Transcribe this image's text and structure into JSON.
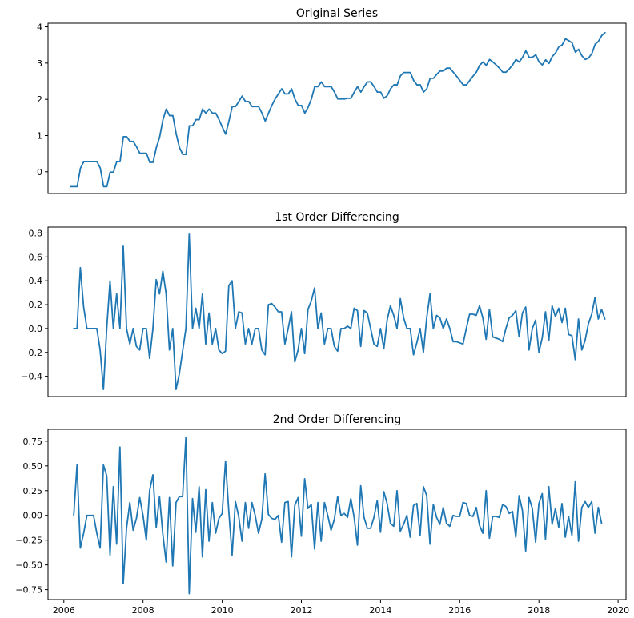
{
  "colors": {
    "line": "#1f77b4",
    "axes": "#000000",
    "background": "#ffffff"
  },
  "chart_data": [
    {
      "type": "line",
      "title": "Original Series",
      "x_range": [
        2005.6,
        2020.2
      ],
      "ylim": [
        -0.6,
        4.1
      ],
      "y_ticks": [
        0,
        1,
        2,
        3,
        4
      ],
      "y_tick_labels": [
        "0",
        "1",
        "2",
        "3",
        "4"
      ],
      "x_ticks": [],
      "grid": false,
      "series": [
        {
          "x_start": 2006.17,
          "x_step": 0.08333,
          "values": [
            -0.41,
            -0.41,
            -0.41,
            0.1,
            0.28,
            0.28,
            0.28,
            0.28,
            0.28,
            0.1,
            -0.41,
            -0.41,
            -0.01,
            -0.01,
            0.28,
            0.28,
            0.97,
            0.97,
            0.84,
            0.84,
            0.69,
            0.51,
            0.51,
            0.51,
            0.26,
            0.26,
            0.67,
            0.96,
            1.44,
            1.73,
            1.55,
            1.55,
            1.05,
            0.67,
            0.48,
            0.48,
            1.27,
            1.27,
            1.44,
            1.44,
            1.73,
            1.62,
            1.73,
            1.62,
            1.62,
            1.44,
            1.23,
            1.04,
            1.4,
            1.8,
            1.8,
            1.94,
            2.09,
            1.94,
            1.94,
            1.8,
            1.8,
            1.8,
            1.62,
            1.4,
            1.62,
            1.83,
            2.01,
            2.15,
            2.29,
            2.15,
            2.15,
            2.29,
            2.01,
            1.83,
            1.83,
            1.62,
            1.78,
            2.01,
            2.35,
            2.35,
            2.48,
            2.35,
            2.35,
            2.35,
            2.2,
            2.01,
            2.01,
            2.01,
            2.03,
            2.03,
            2.2,
            2.35,
            2.2,
            2.35,
            2.48,
            2.48,
            2.35,
            2.2,
            2.2,
            2.03,
            2.1,
            2.29,
            2.4,
            2.4,
            2.65,
            2.74,
            2.74,
            2.74,
            2.52,
            2.4,
            2.4,
            2.2,
            2.29,
            2.58,
            2.58,
            2.69,
            2.78,
            2.78,
            2.86,
            2.86,
            2.75,
            2.64,
            2.52,
            2.4,
            2.4,
            2.52,
            2.64,
            2.75,
            2.94,
            3.03,
            2.94,
            3.1,
            3.03,
            2.95,
            2.86,
            2.75,
            2.75,
            2.84,
            2.95,
            3.1,
            3.03,
            3.16,
            3.34,
            3.16,
            3.16,
            3.23,
            3.03,
            2.95,
            3.09,
            2.99,
            3.18,
            3.28,
            3.45,
            3.5,
            3.67,
            3.62,
            3.56,
            3.3,
            3.38,
            3.2,
            3.1,
            3.14,
            3.26,
            3.52,
            3.6,
            3.76,
            3.84
          ]
        }
      ]
    },
    {
      "type": "line",
      "title": "1st Order Differencing",
      "x_range": [
        2005.6,
        2020.2
      ],
      "ylim": [
        -0.57,
        0.85
      ],
      "y_ticks": [
        -0.4,
        -0.2,
        0.0,
        0.2,
        0.4,
        0.6,
        0.8
      ],
      "y_tick_labels": [
        "−0.4",
        "−0.2",
        "0.0",
        "0.2",
        "0.4",
        "0.6",
        "0.8"
      ],
      "x_ticks": [],
      "grid": false,
      "series": [
        {
          "x_start": 2006.25,
          "x_step": 0.08333,
          "values": [
            0.0,
            0.0,
            0.51,
            0.18,
            0.0,
            0.0,
            0.0,
            0.0,
            -0.18,
            -0.51,
            0.0,
            0.4,
            0.0,
            0.29,
            0.0,
            0.69,
            0.0,
            -0.13,
            0.0,
            -0.15,
            -0.18,
            0.0,
            0.0,
            -0.25,
            0.0,
            0.41,
            0.29,
            0.48,
            0.29,
            -0.18,
            0.0,
            -0.51,
            -0.38,
            -0.19,
            0.0,
            0.79,
            0.0,
            0.17,
            0.0,
            0.29,
            -0.13,
            0.13,
            -0.13,
            0.0,
            -0.18,
            -0.21,
            -0.19,
            0.36,
            0.4,
            0.0,
            0.14,
            0.13,
            -0.13,
            0.0,
            -0.13,
            0.0,
            0.0,
            -0.18,
            -0.22,
            0.2,
            0.21,
            0.18,
            0.14,
            0.14,
            -0.13,
            0.0,
            0.14,
            -0.28,
            -0.18,
            0.0,
            -0.21,
            0.16,
            0.23,
            0.34,
            0.0,
            0.13,
            -0.13,
            0.0,
            0.0,
            -0.15,
            -0.19,
            0.0,
            0.0,
            0.02,
            0.0,
            0.17,
            0.15,
            -0.15,
            0.15,
            0.13,
            0.0,
            -0.13,
            -0.15,
            0.0,
            -0.17,
            0.07,
            0.19,
            0.11,
            0.0,
            0.25,
            0.09,
            0.0,
            0.0,
            -0.22,
            -0.12,
            0.0,
            -0.2,
            0.09,
            0.29,
            0.0,
            0.11,
            0.09,
            0.0,
            0.08,
            0.0,
            -0.11,
            -0.11,
            -0.12,
            -0.13,
            0.0,
            0.12,
            0.12,
            0.11,
            0.19,
            0.09,
            -0.09,
            0.16,
            -0.07,
            -0.08,
            -0.09,
            -0.11,
            0.0,
            0.09,
            0.11,
            0.15,
            -0.07,
            0.13,
            0.18,
            -0.18,
            0.0,
            0.07,
            -0.2,
            -0.08,
            0.14,
            -0.1,
            0.19,
            0.1,
            0.17,
            0.05,
            0.17,
            -0.05,
            -0.06,
            -0.26,
            0.08,
            -0.18,
            -0.1,
            0.04,
            0.12,
            0.26,
            0.08,
            0.16,
            0.08
          ]
        }
      ]
    },
    {
      "type": "line",
      "title": "2nd Order Differencing",
      "x_range": [
        2005.6,
        2020.2
      ],
      "ylim": [
        -0.85,
        0.87
      ],
      "y_ticks": [
        -0.75,
        -0.5,
        -0.25,
        0.0,
        0.25,
        0.5,
        0.75
      ],
      "y_tick_labels": [
        "−0.75",
        "−0.50",
        "−0.25",
        "0.00",
        "0.25",
        "0.50",
        "0.75"
      ],
      "x_ticks": [
        2006,
        2008,
        2010,
        2012,
        2014,
        2016,
        2018,
        2020
      ],
      "x_tick_labels": [
        "2006",
        "2008",
        "2010",
        "2012",
        "2014",
        "2016",
        "2018",
        "2020"
      ],
      "grid": false,
      "series": [
        {
          "x_start": 2006.25,
          "x_step": 0.08333,
          "values": [
            0.0,
            0.51,
            -0.33,
            -0.18,
            0.0,
            0.0,
            0.0,
            -0.18,
            -0.33,
            0.51,
            0.4,
            -0.4,
            0.29,
            -0.29,
            0.69,
            -0.69,
            -0.13,
            0.13,
            -0.15,
            -0.03,
            0.18,
            0.0,
            -0.25,
            0.25,
            0.41,
            -0.12,
            0.19,
            -0.19,
            -0.47,
            0.18,
            -0.51,
            0.13,
            0.19,
            0.19,
            0.79,
            -0.79,
            0.17,
            -0.17,
            0.29,
            -0.42,
            0.26,
            -0.26,
            0.13,
            -0.18,
            -0.03,
            0.02,
            0.55,
            0.04,
            -0.4,
            0.14,
            -0.01,
            -0.26,
            0.13,
            -0.13,
            0.13,
            0.0,
            -0.18,
            -0.04,
            0.42,
            0.01,
            -0.03,
            -0.04,
            0.0,
            -0.27,
            0.13,
            0.14,
            -0.42,
            0.1,
            0.18,
            -0.21,
            0.37,
            0.07,
            0.11,
            -0.34,
            0.13,
            -0.26,
            0.13,
            0.0,
            -0.15,
            -0.04,
            0.19,
            0.0,
            0.02,
            -0.02,
            0.17,
            -0.02,
            -0.3,
            0.3,
            -0.02,
            -0.13,
            -0.13,
            -0.02,
            0.15,
            -0.17,
            0.24,
            0.12,
            -0.08,
            -0.11,
            0.25,
            -0.16,
            -0.09,
            0.0,
            -0.22,
            0.1,
            0.12,
            -0.2,
            0.29,
            0.2,
            -0.29,
            0.11,
            -0.02,
            -0.09,
            0.08,
            -0.08,
            -0.11,
            0.0,
            -0.01,
            -0.01,
            0.13,
            0.12,
            0.0,
            -0.01,
            0.08,
            -0.1,
            -0.18,
            0.25,
            -0.23,
            -0.01,
            -0.01,
            -0.02,
            0.11,
            0.09,
            0.02,
            0.04,
            -0.22,
            0.2,
            0.05,
            -0.36,
            0.18,
            0.07,
            -0.27,
            0.12,
            0.22,
            -0.24,
            0.29,
            -0.09,
            0.07,
            -0.12,
            0.12,
            -0.22,
            -0.01,
            -0.2,
            0.34,
            -0.26,
            0.08,
            0.14,
            0.08,
            0.14,
            -0.18,
            0.08,
            -0.08
          ]
        }
      ]
    }
  ]
}
